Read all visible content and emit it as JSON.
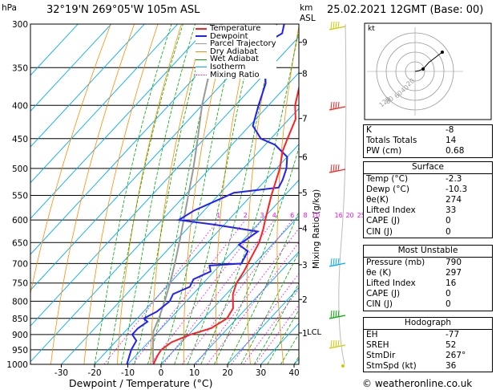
{
  "header": {
    "location": "32°19'N  269°05'W  105m  ASL",
    "datetime": "25.02.2021  12GMT  (Base: 00)",
    "units_left": "hPa",
    "units_right_1": "km",
    "units_right_2": "ASL"
  },
  "legend": [
    "Temperature",
    "Dewpoint",
    "Parcel Trajectory",
    "Dry Adiabat",
    "Wet Adiabat",
    "Isotherm",
    "Mixing Ratio"
  ],
  "colors": {
    "temperature": "#ff2020",
    "dewpoint": "#2020ff",
    "parcel": "#999999",
    "dry_adiabat": "#ff8c00",
    "wet_adiabat": "#00aa00",
    "isotherm": "#00aaff",
    "mixing_ratio": "#ff00ff"
  },
  "footer": "© weatheronline.co.uk",
  "chart_data": {
    "type": "line",
    "xlabel": "Dewpoint / Temperature (°C)",
    "ylabel_right": "Mixing Ratio (g/kg)",
    "x_ticks": [
      -30,
      -20,
      -10,
      0,
      10,
      20,
      30,
      40
    ],
    "pressure_ticks": [
      300,
      350,
      400,
      450,
      500,
      550,
      600,
      650,
      700,
      750,
      800,
      850,
      900,
      950,
      1000
    ],
    "km_ticks": [
      {
        "label": "9",
        "p": 320
      },
      {
        "label": "8",
        "p": 357
      },
      {
        "label": "7",
        "p": 419
      },
      {
        "label": "6",
        "p": 480
      },
      {
        "label": "5",
        "p": 545
      },
      {
        "label": "4",
        "p": 618
      },
      {
        "label": "3",
        "p": 703
      },
      {
        "label": "2",
        "p": 795
      },
      {
        "label": "1",
        "p": 895
      }
    ],
    "lcl_label": "LCL",
    "lcl_p": 890,
    "mixing_ratio_labels": [
      "1",
      "2",
      "3",
      "4",
      "6",
      "8",
      "10",
      "16",
      "20",
      "25"
    ],
    "temperature": [
      {
        "p": 1000,
        "t": -2.3
      },
      {
        "p": 970,
        "t": -3.5
      },
      {
        "p": 950,
        "t": -4
      },
      {
        "p": 925,
        "t": -3
      },
      {
        "p": 900,
        "t": 0.5
      },
      {
        "p": 880,
        "t": 5
      },
      {
        "p": 850,
        "t": 7
      },
      {
        "p": 820,
        "t": 6
      },
      {
        "p": 800,
        "t": 4
      },
      {
        "p": 780,
        "t": 2
      },
      {
        "p": 750,
        "t": 0
      },
      {
        "p": 720,
        "t": -1
      },
      {
        "p": 700,
        "t": -2
      },
      {
        "p": 650,
        "t": -4.5
      },
      {
        "p": 620,
        "t": -7
      },
      {
        "p": 600,
        "t": -9
      },
      {
        "p": 550,
        "t": -14
      },
      {
        "p": 500,
        "t": -19
      },
      {
        "p": 470,
        "t": -23
      },
      {
        "p": 450,
        "t": -25
      },
      {
        "p": 420,
        "t": -28
      },
      {
        "p": 400,
        "t": -32
      },
      {
        "p": 350,
        "t": -40
      },
      {
        "p": 320,
        "t": -45
      },
      {
        "p": 300,
        "t": -49
      }
    ],
    "dewpoint": [
      {
        "p": 1000,
        "t": -10.3
      },
      {
        "p": 950,
        "t": -13
      },
      {
        "p": 920,
        "t": -14
      },
      {
        "p": 900,
        "t": -17
      },
      {
        "p": 880,
        "t": -17
      },
      {
        "p": 860,
        "t": -16
      },
      {
        "p": 850,
        "t": -18
      },
      {
        "p": 830,
        "t": -16
      },
      {
        "p": 800,
        "t": -15
      },
      {
        "p": 780,
        "t": -16
      },
      {
        "p": 760,
        "t": -13
      },
      {
        "p": 740,
        "t": -14
      },
      {
        "p": 720,
        "t": -11
      },
      {
        "p": 705,
        "t": -13
      },
      {
        "p": 700,
        "t": -4
      },
      {
        "p": 680,
        "t": -5
      },
      {
        "p": 670,
        "t": -5.5
      },
      {
        "p": 655,
        "t": -10
      },
      {
        "p": 640,
        "t": -9
      },
      {
        "p": 625,
        "t": -8
      },
      {
        "p": 610,
        "t": -23
      },
      {
        "p": 600,
        "t": -35
      },
      {
        "p": 580,
        "t": -33
      },
      {
        "p": 560,
        "t": -29
      },
      {
        "p": 545,
        "t": -26
      },
      {
        "p": 535,
        "t": -14
      },
      {
        "p": 520,
        "t": -15
      },
      {
        "p": 500,
        "t": -17
      },
      {
        "p": 480,
        "t": -20
      },
      {
        "p": 460,
        "t": -27
      },
      {
        "p": 450,
        "t": -33
      },
      {
        "p": 430,
        "t": -39
      },
      {
        "p": 400,
        "t": -43
      },
      {
        "p": 370,
        "t": -47
      },
      {
        "p": 340,
        "t": -54
      },
      {
        "p": 330,
        "t": -54
      },
      {
        "p": 320,
        "t": -58
      },
      {
        "p": 310,
        "t": -56
      },
      {
        "p": 300,
        "t": -58
      }
    ],
    "parcel": [
      {
        "p": 1000,
        "t": -2.3
      },
      {
        "p": 950,
        "t": -6.5
      },
      {
        "p": 890,
        "t": -11.5
      },
      {
        "p": 850,
        "t": -13.5
      },
      {
        "p": 800,
        "t": -16.5
      },
      {
        "p": 750,
        "t": -20
      },
      {
        "p": 700,
        "t": -24
      },
      {
        "p": 650,
        "t": -28.5
      },
      {
        "p": 600,
        "t": -33.5
      },
      {
        "p": 550,
        "t": -39
      },
      {
        "p": 500,
        "t": -45
      },
      {
        "p": 450,
        "t": -52
      },
      {
        "p": 400,
        "t": -60
      },
      {
        "p": 350,
        "t": -68
      },
      {
        "p": 300,
        "t": -77
      }
    ]
  },
  "indices": {
    "rows": [
      {
        "label": "K",
        "value": "-8"
      },
      {
        "label": "Totals Totals",
        "value": "14"
      },
      {
        "label": "PW (cm)",
        "value": "0.68"
      }
    ]
  },
  "surface": {
    "title": "Surface",
    "rows": [
      {
        "label": "Temp (°C)",
        "value": "-2.3"
      },
      {
        "label": "Dewp (°C)",
        "value": "-10.3"
      },
      {
        "label": "θe(K)",
        "value": "274"
      },
      {
        "label": "Lifted Index",
        "value": "33"
      },
      {
        "label": "CAPE (J)",
        "value": "0"
      },
      {
        "label": "CIN (J)",
        "value": "0"
      }
    ]
  },
  "most_unstable": {
    "title": "Most Unstable",
    "rows": [
      {
        "label": "Pressure (mb)",
        "value": "790"
      },
      {
        "label": "θe (K)",
        "value": "297"
      },
      {
        "label": "Lifted Index",
        "value": "16"
      },
      {
        "label": "CAPE (J)",
        "value": "0"
      },
      {
        "label": "CIN (J)",
        "value": "0"
      }
    ]
  },
  "hodograph": {
    "title": "Hodograph",
    "unit_label": "kt",
    "ring_labels": [
      "20",
      "40",
      "60",
      "80",
      "120"
    ],
    "rows": [
      {
        "label": "EH",
        "value": "-77"
      },
      {
        "label": "SREH",
        "value": "52"
      },
      {
        "label": "StmDir",
        "value": "267°"
      },
      {
        "label": "StmSpd (kt)",
        "value": "36"
      }
    ]
  }
}
